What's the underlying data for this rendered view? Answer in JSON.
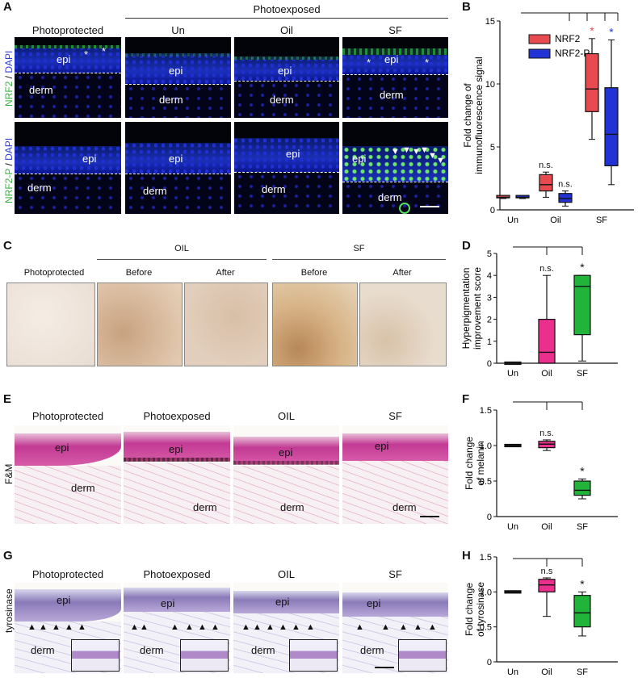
{
  "panel_letters": {
    "A": "A",
    "B": "B",
    "C": "C",
    "D": "D",
    "E": "E",
    "F": "F",
    "G": "G",
    "H": "H"
  },
  "panel_a": {
    "col_photoprotected": "Photoprotected",
    "group_photoexposed": "Photoexposed",
    "cols": [
      "Un",
      "Oil",
      "SF"
    ],
    "row_labels": [
      {
        "marker": "NRF2",
        "sep": " / ",
        "dapi": "DAPI"
      },
      {
        "marker": "NRF2-P",
        "sep": " / ",
        "dapi": "DAPI"
      }
    ],
    "epi": "epi",
    "derm": "derm",
    "star": "*",
    "colors": {
      "marker": "#3cb043",
      "dapi": "#2f3fd8"
    }
  },
  "panel_c": {
    "col_photoprotected": "Photoprotected",
    "group_oil": "OIL",
    "group_sf": "SF",
    "before": "Before",
    "after": "After"
  },
  "panel_e": {
    "cols": [
      "Photoprotected",
      "Photoexposed",
      "OIL",
      "SF"
    ],
    "row_label": "F&M",
    "epi": "epi",
    "derm": "derm"
  },
  "panel_g": {
    "cols": [
      "Photoprotected",
      "Photoexposed",
      "OIL",
      "SF"
    ],
    "row_label": "tyrosinase",
    "epi": "epi",
    "derm": "derm"
  },
  "chart_data": [
    {
      "panel": "B",
      "type": "box",
      "ylabel": "Fold change of immunofluorescence signal",
      "ylim": [
        0,
        15
      ],
      "yticks": [
        0,
        5,
        10,
        15
      ],
      "categories": [
        "Un",
        "Oil",
        "SF"
      ],
      "legend": {
        "placement": "top-center"
      },
      "series": [
        {
          "name": "NRF2",
          "color": "#e84b4f",
          "boxes": [
            {
              "category": "Un",
              "min": 0.9,
              "q1": 0.95,
              "median": 1.0,
              "q3": 1.05,
              "max": 1.1
            },
            {
              "category": "Oil",
              "min": 1.0,
              "q1": 1.5,
              "median": 2.0,
              "q3": 2.8,
              "max": 3.0,
              "annotation": "n.s."
            },
            {
              "category": "SF",
              "min": 5.6,
              "q1": 7.8,
              "median": 9.6,
              "q3": 12.4,
              "max": 13.6,
              "annotation": "*"
            }
          ]
        },
        {
          "name": "NRF2-P",
          "color": "#2233d6",
          "boxes": [
            {
              "category": "Un",
              "min": 0.9,
              "q1": 0.95,
              "median": 1.0,
              "q3": 1.05,
              "max": 1.1
            },
            {
              "category": "Oil",
              "min": 0.3,
              "q1": 0.6,
              "median": 0.9,
              "q3": 1.3,
              "max": 1.5,
              "annotation": "n.s."
            },
            {
              "category": "SF",
              "min": 2.0,
              "q1": 3.5,
              "median": 6.0,
              "q3": 9.7,
              "max": 13.5,
              "annotation": "*"
            }
          ]
        }
      ]
    },
    {
      "panel": "D",
      "type": "box",
      "ylabel": "Hyperpigmentation improvement score",
      "ylim": [
        0,
        5
      ],
      "yticks": [
        0,
        1,
        2,
        3,
        4,
        5
      ],
      "categories": [
        "Un",
        "Oil",
        "SF"
      ],
      "boxes": [
        {
          "category": "Un",
          "min": 0,
          "q1": 0,
          "median": 0,
          "q3": 0,
          "max": 0,
          "color": "#222222"
        },
        {
          "category": "Oil",
          "min": 0,
          "q1": 0,
          "median": 0.5,
          "q3": 2.0,
          "max": 4.0,
          "color": "#ea2f8c",
          "annotation": "n.s."
        },
        {
          "category": "SF",
          "min": 0.1,
          "q1": 1.3,
          "median": 3.5,
          "q3": 4.0,
          "max": 4.0,
          "color": "#22b43a",
          "annotation": "*"
        }
      ]
    },
    {
      "panel": "F",
      "type": "box",
      "ylabel": "Fold change of melanin",
      "ylim": [
        0,
        1.5
      ],
      "yticks": [
        0,
        0.5,
        1.0,
        1.5
      ],
      "ytick_labels": [
        "0",
        "0.5",
        "1.0",
        "1.5"
      ],
      "categories": [
        "Un",
        "Oil",
        "SF"
      ],
      "boxes": [
        {
          "category": "Un",
          "min": 1.0,
          "q1": 1.0,
          "median": 1.0,
          "q3": 1.0,
          "max": 1.0,
          "color": "#222222"
        },
        {
          "category": "Oil",
          "min": 0.93,
          "q1": 0.97,
          "median": 1.02,
          "q3": 1.06,
          "max": 1.08,
          "color": "#ea2f8c",
          "annotation": "n.s."
        },
        {
          "category": "SF",
          "min": 0.25,
          "q1": 0.3,
          "median": 0.37,
          "q3": 0.5,
          "max": 0.53,
          "color": "#22b43a",
          "annotation": "*"
        }
      ]
    },
    {
      "panel": "H",
      "type": "box",
      "ylabel": "Fold change of tyrosinase",
      "ylim": [
        0,
        1.5
      ],
      "yticks": [
        0,
        0.5,
        1.0,
        1.5
      ],
      "ytick_labels": [
        "0",
        "0.5",
        "1.0",
        "1.5"
      ],
      "categories": [
        "Un",
        "Oil",
        "SF"
      ],
      "boxes": [
        {
          "category": "Un",
          "min": 1.0,
          "q1": 1.0,
          "median": 1.0,
          "q3": 1.0,
          "max": 1.0,
          "color": "#222222"
        },
        {
          "category": "Oil",
          "min": 0.65,
          "q1": 1.0,
          "median": 1.1,
          "q3": 1.18,
          "max": 1.2,
          "color": "#ea2f8c",
          "annotation": "n.s"
        },
        {
          "category": "SF",
          "min": 0.37,
          "q1": 0.5,
          "median": 0.7,
          "q3": 0.95,
          "max": 1.0,
          "color": "#22b43a",
          "annotation": "*"
        }
      ]
    }
  ]
}
